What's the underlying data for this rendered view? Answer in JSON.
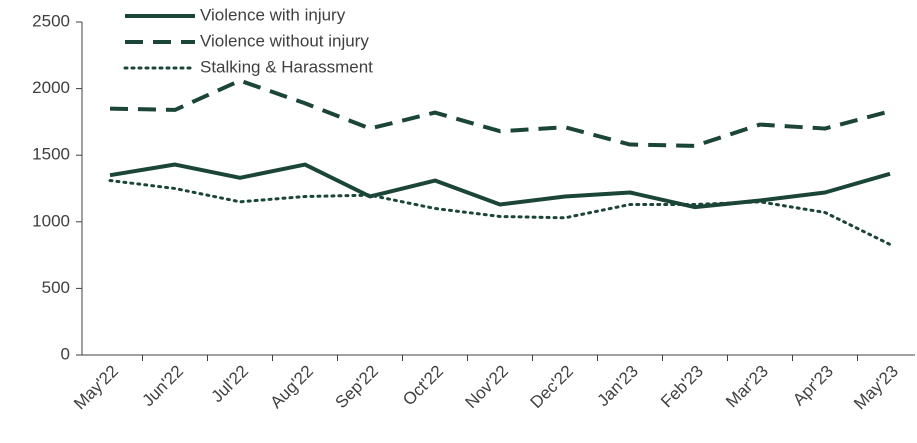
{
  "chart_data": {
    "type": "line",
    "categories": [
      "May'22",
      "Jun'22",
      "Jul'22",
      "Aug'22",
      "Sep'22",
      "Oct'22",
      "Nov'22",
      "Dec'22",
      "Jan'23",
      "Feb'23",
      "Mar'23",
      "Apr'23",
      "May'23"
    ],
    "series": [
      {
        "name": "Violence with injury",
        "color": "#1b4538",
        "line_style": "solid",
        "values": [
          1350,
          1430,
          1330,
          1430,
          1190,
          1310,
          1130,
          1190,
          1220,
          1110,
          1160,
          1220,
          1360
        ]
      },
      {
        "name": "Violence without injury",
        "color": "#1b4538",
        "line_style": "dashed",
        "values": [
          1850,
          1840,
          2060,
          1890,
          1700,
          1820,
          1680,
          1710,
          1580,
          1570,
          1730,
          1700,
          1830
        ]
      },
      {
        "name": "Stalking & Harassment",
        "color": "#1b4538",
        "line_style": "dotted",
        "values": [
          1310,
          1250,
          1150,
          1190,
          1200,
          1100,
          1040,
          1030,
          1130,
          1130,
          1150,
          1070,
          830
        ]
      }
    ],
    "ylim": [
      0,
      2500
    ],
    "yticks": [
      0,
      500,
      1000,
      1500,
      2000,
      2500
    ],
    "grid": false,
    "legend": "top-left"
  }
}
